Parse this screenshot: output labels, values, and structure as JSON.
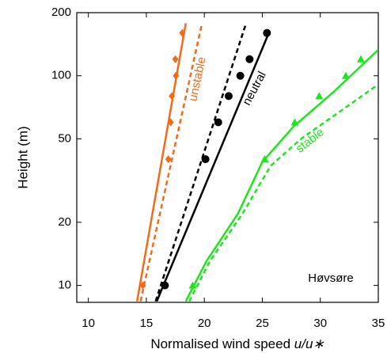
{
  "chart_data": {
    "type": "profile",
    "xlabel": "Normalised wind speed",
    "xlabel_variable": "u/u∗",
    "ylabel": "Height (m)",
    "xlim": [
      9,
      35
    ],
    "xticks": [
      10,
      15,
      20,
      25,
      30,
      35
    ],
    "ylim": [
      8.3,
      200
    ],
    "yticks": [
      10,
      20,
      50,
      100,
      200
    ],
    "ylog": true,
    "annotations": [
      "unstable",
      "neutral",
      "stable",
      "Høvsøre"
    ],
    "series": [
      {
        "color": "#f26a1b",
        "style": "markers",
        "marker": "diamond",
        "x": [
          14.7,
          16.9,
          17.1,
          17.2,
          17.55,
          17.5,
          18.1
        ],
        "y": [
          10,
          40,
          60,
          80,
          100,
          120,
          160
        ]
      },
      {
        "color": "#f26a1b",
        "style": "solid",
        "x": [
          14.2,
          18.4
        ],
        "y": [
          8.4,
          178
        ]
      },
      {
        "color": "#f26a1b",
        "style": "dashed",
        "x": [
          14.5,
          19.8
        ],
        "y": [
          8.4,
          178
        ]
      },
      {
        "color": "#000000",
        "style": "markers",
        "marker": "circle",
        "x": [
          16.6,
          20.1,
          21.2,
          22.1,
          23.1,
          23.9,
          25.4
        ],
        "y": [
          10,
          40,
          60,
          80,
          100,
          120,
          160
        ]
      },
      {
        "color": "#000000",
        "style": "solid",
        "x": [
          15.9,
          25.6
        ],
        "y": [
          8.4,
          162
        ]
      },
      {
        "color": "#000000",
        "style": "dashed",
        "x": [
          15.8,
          23.6
        ],
        "y": [
          8.4,
          178
        ]
      },
      {
        "color": "#1ee61e",
        "style": "markers",
        "marker": "triangle",
        "x": [
          19.0,
          25.2,
          27.8,
          29.9,
          32.2,
          33.5
        ],
        "y": [
          10,
          40,
          60,
          80,
          100,
          120
        ]
      },
      {
        "color": "#1ee61e",
        "style": "solid",
        "x": [
          18.4,
          20.2,
          22.9,
          25.0,
          27.7,
          31.1,
          35
        ],
        "y": [
          8.4,
          13.1,
          22.0,
          38.8,
          57.3,
          83.3,
          133
        ]
      },
      {
        "color": "#1ee61e",
        "style": "dashed",
        "x": [
          18.7,
          20.5,
          23.3,
          25.7,
          28.4,
          31.8,
          35
        ],
        "y": [
          8.4,
          13.1,
          22.0,
          37.1,
          50.3,
          68.2,
          90.9
        ]
      }
    ]
  }
}
